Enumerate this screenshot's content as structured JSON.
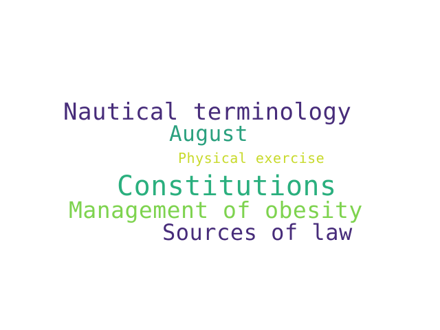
{
  "words": [
    {
      "text": "Nautical terminology",
      "color": "#472c7a"
    },
    {
      "text": "August",
      "color": "#2aa07e"
    },
    {
      "text": "Physical exercise",
      "color": "#c8da2c"
    },
    {
      "text": "Constitutions",
      "color": "#2aaf7e"
    },
    {
      "text": "Management of obesity",
      "color": "#7ed34f"
    },
    {
      "text": "Sources of law",
      "color": "#472c7a"
    }
  ]
}
